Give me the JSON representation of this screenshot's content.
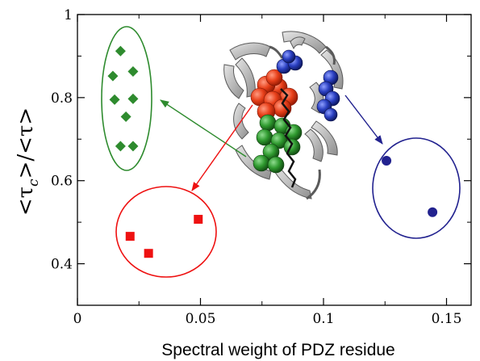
{
  "chart_data": {
    "type": "scatter",
    "title": "",
    "xlabel": "Spectral weight of PDZ residue",
    "ylabel": "<τc>/<τ>",
    "ylabel_parts": {
      "open": "<",
      "tau": "τ",
      "sub": "c",
      "mid": ">/<",
      "tau2": "τ",
      "close": ">"
    },
    "xlim": [
      0,
      0.16
    ],
    "ylim": [
      0.3,
      1.0
    ],
    "xticks": [
      0,
      0.05,
      0.1,
      0.15
    ],
    "xtick_labels": [
      "0",
      "0.05",
      "0.1",
      "0.15"
    ],
    "yticks": [
      0.4,
      0.6,
      0.8,
      1.0
    ],
    "ytick_labels": [
      "0.4",
      "0.6",
      "0.8",
      "1"
    ],
    "grid": false,
    "series": [
      {
        "color": "#2e8b2e",
        "marker": "diamond",
        "points": [
          {
            "x": 0.0175,
            "y": 0.912
          },
          {
            "x": 0.0144,
            "y": 0.852
          },
          {
            "x": 0.0226,
            "y": 0.863
          },
          {
            "x": 0.0151,
            "y": 0.795
          },
          {
            "x": 0.0226,
            "y": 0.797
          },
          {
            "x": 0.0197,
            "y": 0.754
          },
          {
            "x": 0.0175,
            "y": 0.683
          },
          {
            "x": 0.0226,
            "y": 0.683
          }
        ]
      },
      {
        "color": "#ee1111",
        "marker": "square",
        "points": [
          {
            "x": 0.0214,
            "y": 0.466
          },
          {
            "x": 0.0289,
            "y": 0.425
          },
          {
            "x": 0.0491,
            "y": 0.507
          }
        ]
      },
      {
        "color": "#22228f",
        "marker": "circle",
        "points": [
          {
            "x": 0.1256,
            "y": 0.648
          },
          {
            "x": 0.1443,
            "y": 0.524
          }
        ]
      }
    ],
    "colors": {
      "green": "#2e8b2e",
      "red": "#ee1111",
      "blue": "#22228f",
      "protein_gray": "#b8b8b8"
    }
  }
}
